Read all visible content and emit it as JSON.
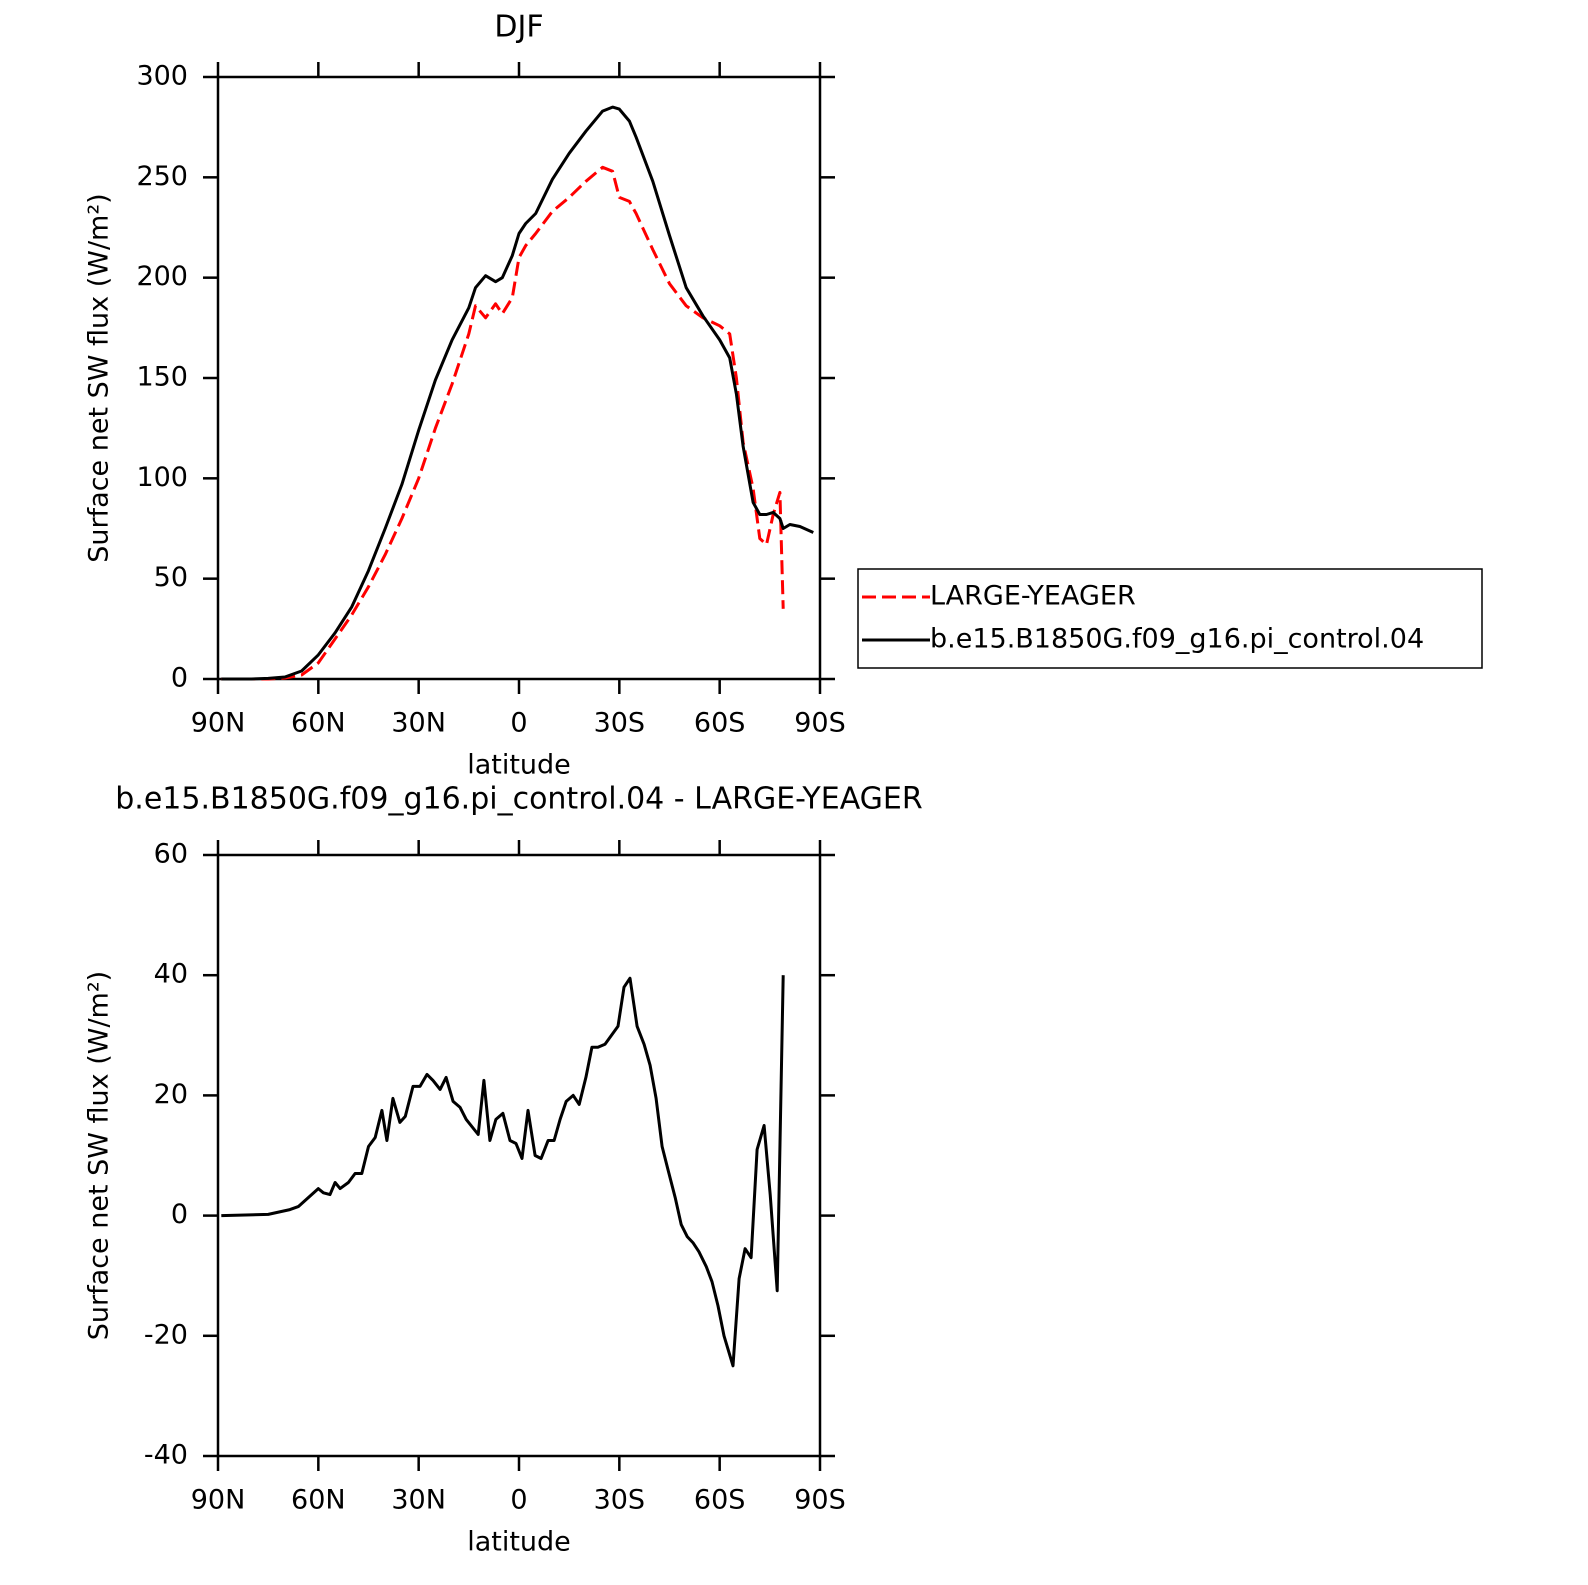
{
  "chart_data": [
    {
      "type": "line",
      "title": "DJF",
      "xlabel": "latitude",
      "ylabel": "Surface net SW flux (W/m²)",
      "x": [
        89,
        85,
        80,
        75,
        70,
        65,
        60,
        55,
        50,
        45,
        40,
        35,
        30,
        25,
        20,
        15,
        13,
        10,
        7,
        5,
        2,
        0,
        -2,
        -5,
        -10,
        -15,
        -20,
        -25,
        -28,
        -30,
        -33,
        -35,
        -40,
        -45,
        -50,
        -55,
        -60,
        -63,
        -65,
        -67,
        -70,
        -72,
        -74,
        -76,
        -78,
        -79,
        -81,
        -84,
        -88
      ],
      "series": [
        {
          "name": "LARGE-YEAGER",
          "color": "#ff0000",
          "linestyle": "dashed",
          "values": [
            0,
            0,
            0,
            0,
            0.5,
            2,
            8,
            20,
            32,
            46,
            62,
            80,
            100,
            125,
            147,
            172,
            186,
            180,
            187,
            182,
            190,
            210,
            216,
            222,
            233,
            240,
            248,
            255,
            253,
            240,
            238,
            232,
            214,
            197,
            186,
            180,
            176,
            172,
            150,
            118,
            95,
            70,
            67,
            82,
            93,
            35,
            null,
            null,
            null
          ]
        },
        {
          "name": "b.e15.B1850G.f09_g16.pi_control.04",
          "color": "#000000",
          "linestyle": "solid",
          "values": [
            0,
            0,
            0,
            0.3,
            1,
            4,
            12,
            23,
            36,
            54,
            75,
            97,
            124,
            149,
            169,
            185,
            195,
            201,
            198,
            200,
            211,
            222,
            227,
            232,
            249,
            262,
            273,
            283,
            285,
            284,
            278,
            270,
            248,
            221,
            195,
            181,
            169,
            160,
            142,
            116,
            88,
            82,
            82,
            83,
            80,
            75,
            77,
            76,
            73
          ]
        }
      ],
      "xlim": [
        90,
        -90
      ],
      "xticks": [
        {
          "value": 90,
          "label": "90N"
        },
        {
          "value": 60,
          "label": "60N"
        },
        {
          "value": 30,
          "label": "30N"
        },
        0,
        {
          "value": -30,
          "label": "30S"
        },
        {
          "value": -60,
          "label": "60S"
        },
        {
          "value": -90,
          "label": "90S"
        }
      ],
      "ylim": [
        0,
        300
      ],
      "yticks": [
        0,
        50,
        100,
        150,
        200,
        250,
        300
      ],
      "legend": "right"
    },
    {
      "type": "line",
      "title": "b.e15.B1850G.f09_g16.pi_control.04 - LARGE-YEAGER",
      "xlabel": "latitude",
      "ylabel": "Surface net SW flux (W/m²)",
      "x": [
        89,
        75,
        68.5,
        66,
        60,
        58.5,
        56.5,
        55,
        53.5,
        51,
        49,
        47,
        45,
        43,
        41,
        39.5,
        37.7,
        35.6,
        34,
        31.7,
        29.6,
        27.5,
        25.7,
        23.6,
        21.8,
        19.7,
        17.6,
        15.8,
        12.2,
        10.5,
        8.7,
        6.9,
        4.8,
        2.7,
        0.9,
        -0.9,
        -2.7,
        -4.8,
        -6.6,
        -8.7,
        -10.5,
        -12.3,
        -14.1,
        -16.2,
        -18,
        -20,
        -21.8,
        -23.6,
        -25.7,
        -29.6,
        -31.4,
        -33.2,
        -35.3,
        -37.4,
        -39.2,
        -41,
        -42.8,
        -44.6,
        -46.7,
        -48.5,
        -50.3,
        -52,
        -53.8,
        -56,
        -57.7,
        -59.5,
        -61.3,
        -64,
        -65.8,
        -67.6,
        -69.4,
        -71.2,
        -73.3,
        -75.1,
        -77.2,
        -79
      ],
      "values": [
        0,
        0.2,
        1,
        1.5,
        4.5,
        3.8,
        3.5,
        5.5,
        4.5,
        5.5,
        7,
        7,
        11.5,
        13,
        17.5,
        12.5,
        19.5,
        15.5,
        16.5,
        21.5,
        21.5,
        23.5,
        22.5,
        21,
        23,
        19,
        18,
        16,
        13.5,
        22.5,
        12.5,
        16,
        17,
        12.5,
        12,
        9.5,
        17.5,
        10,
        9.5,
        12.5,
        12.5,
        16,
        19,
        20,
        18.5,
        23,
        28,
        28,
        28.5,
        31.5,
        38,
        39.5,
        31.5,
        28.5,
        25,
        19.5,
        11.5,
        7.5,
        3,
        -1.5,
        -3.5,
        -4.5,
        -6,
        -8.5,
        -11,
        -15,
        -20,
        -25,
        -10.5,
        -5.5,
        -7,
        11,
        15,
        3.5,
        -12.5,
        40
      ],
      "color": "#000000",
      "xlim": [
        90,
        -90
      ],
      "xticks": [
        {
          "value": 90,
          "label": "90N"
        },
        {
          "value": 60,
          "label": "60N"
        },
        {
          "value": 30,
          "label": "30N"
        },
        0,
        {
          "value": -30,
          "label": "30S"
        },
        {
          "value": -60,
          "label": "60S"
        },
        {
          "value": -90,
          "label": "90S"
        }
      ],
      "ylim": [
        -40,
        60
      ],
      "yticks": [
        -40,
        -20,
        0,
        20,
        40,
        60
      ]
    }
  ]
}
